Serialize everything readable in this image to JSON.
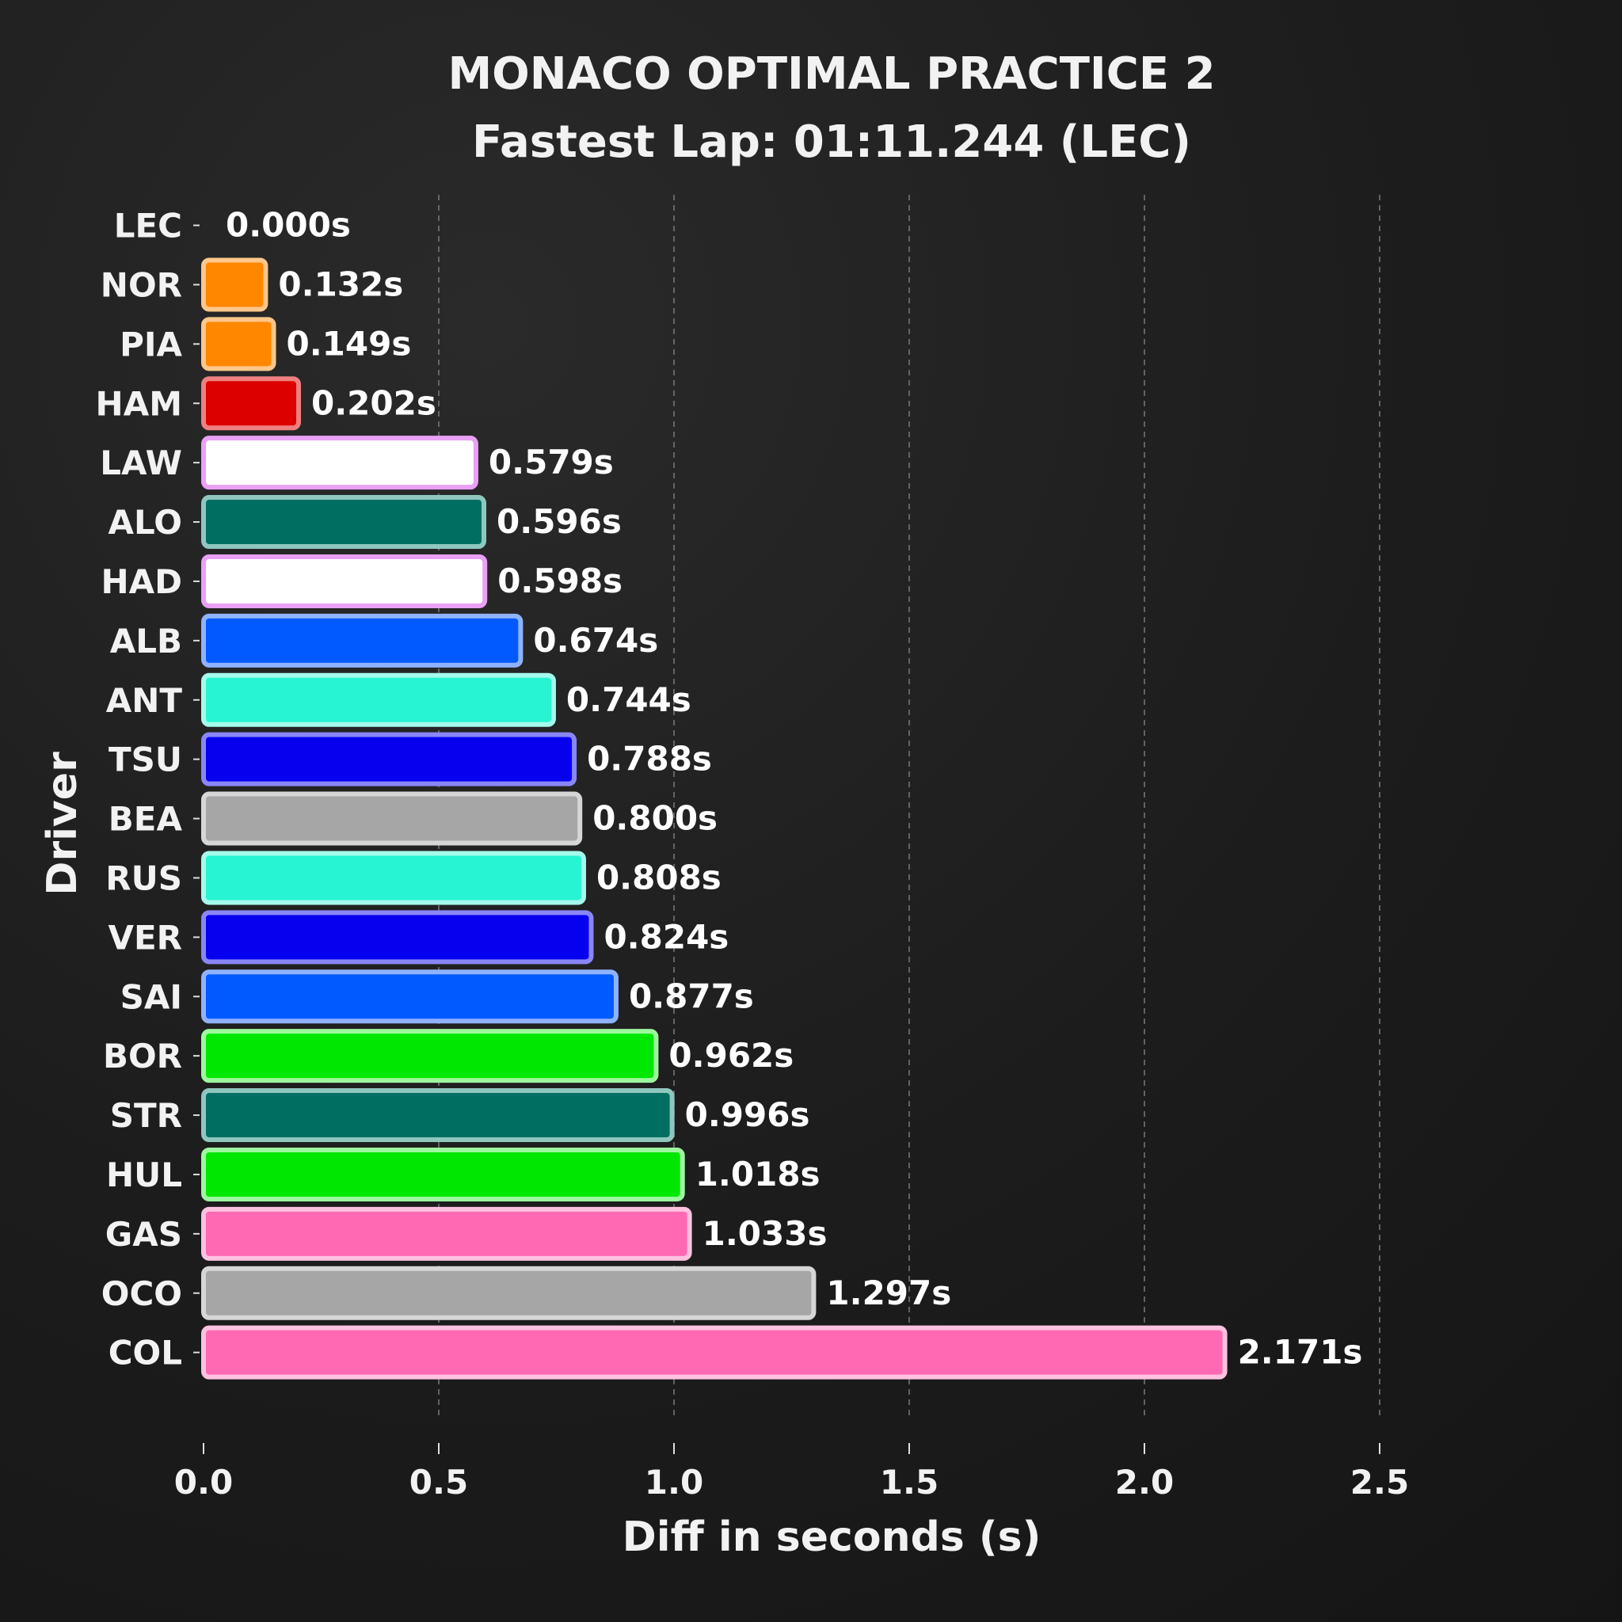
{
  "chart_data": {
    "type": "bar",
    "orientation": "horizontal",
    "title": "MONACO OPTIMAL PRACTICE 2",
    "subtitle": "Fastest Lap: 01:11.244 (LEC)",
    "xlabel": "Diff in seconds (s)",
    "ylabel": "Driver",
    "xlim": [
      0,
      2.5
    ],
    "xticks": [
      0.0,
      0.5,
      1.0,
      1.5,
      2.0,
      2.5
    ],
    "xtick_labels": [
      "0.0",
      "0.5",
      "1.0",
      "1.5",
      "2.0",
      "2.5"
    ],
    "grid": "vertical dashed",
    "value_suffix": "s",
    "categories": [
      "LEC",
      "NOR",
      "PIA",
      "HAM",
      "LAW",
      "ALO",
      "HAD",
      "ALB",
      "ANT",
      "TSU",
      "BEA",
      "RUS",
      "VER",
      "SAI",
      "BOR",
      "STR",
      "HUL",
      "GAS",
      "OCO",
      "COL"
    ],
    "values": [
      0.0,
      0.132,
      0.149,
      0.202,
      0.579,
      0.596,
      0.598,
      0.674,
      0.744,
      0.788,
      0.8,
      0.808,
      0.824,
      0.877,
      0.962,
      0.996,
      1.018,
      1.033,
      1.297,
      2.171
    ],
    "value_labels": [
      "0.000s",
      "0.132s",
      "0.149s",
      "0.202s",
      "0.579s",
      "0.596s",
      "0.598s",
      "0.674s",
      "0.744s",
      "0.788s",
      "0.800s",
      "0.808s",
      "0.824s",
      "0.877s",
      "0.962s",
      "0.996s",
      "1.018s",
      "1.033s",
      "1.297s",
      "2.171s"
    ],
    "colors": [
      "#DC0000",
      "#FF8700",
      "#FF8700",
      "#DC0000",
      "#FFFFFF",
      "#006F62",
      "#FFFFFF",
      "#005AFF",
      "#27F4D2",
      "#0600EF",
      "#A6A6A6",
      "#27F4D2",
      "#0600EF",
      "#005AFF",
      "#00E701",
      "#006F62",
      "#00E701",
      "#FF69B4",
      "#A6A6A6",
      "#FF69B4"
    ],
    "edge_colors": [
      "#F08080",
      "#FFC78A",
      "#FFC78A",
      "#F08080",
      "#E9A0F5",
      "#8FC7BF",
      "#E9A0F5",
      "#8FB2FF",
      "#A5FAEC",
      "#8A86F7",
      "#D6D6D6",
      "#A5FAEC",
      "#8A86F7",
      "#8FB2FF",
      "#9DF79E",
      "#8FC7BF",
      "#9DF79E",
      "#FFC2E0",
      "#D6D6D6",
      "#FFC2E0"
    ]
  }
}
